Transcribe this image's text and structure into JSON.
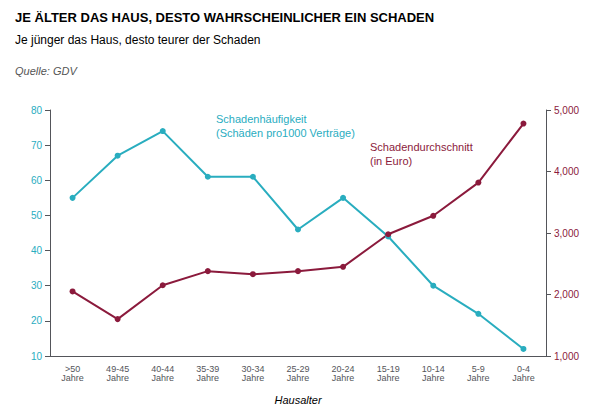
{
  "chart_data": {
    "type": "line",
    "title": "JE ÄLTER DAS HAUS, DESTO WAHRSCHEINLICHER EIN SCHADEN",
    "subtitle": "Je jünger das Haus, desto teurer der Schaden",
    "source": "Quelle: GDV",
    "xlabel": "Hausalter",
    "categories": [
      ">50\nJahre",
      "49-45\nJahre",
      "40-44\nJahre",
      "35-39\nJahre",
      "30-34\nJahre",
      "25-29\nJahre",
      "20-24\nJahre",
      "15-19\nJahre",
      "10-14\nJahre",
      "5-9\nJahre",
      "0-4\nJahre"
    ],
    "series": [
      {
        "color": "#29ADBF",
        "values": [
          55,
          67,
          74,
          61,
          61,
          46,
          55,
          44,
          30,
          22,
          12
        ]
      },
      {
        "color": "#8B1A3C",
        "axis": "y2",
        "values": [
          2050,
          1600,
          2150,
          2380,
          2330,
          2380,
          2450,
          2980,
          3280,
          3820,
          4780
        ]
      }
    ],
    "annotations": [
      "Schadenhäufigkeit\n(Schäden pro1000 Verträge)",
      "Schadendurchschnitt\n(in Euro)"
    ],
    "ylim": [
      10,
      80
    ],
    "yticks": [
      10,
      20,
      30,
      40,
      50,
      60,
      70,
      80
    ],
    "y2lim": [
      1000,
      5000
    ],
    "y2ticks": [
      1000,
      2000,
      3000,
      4000,
      5000
    ],
    "marker": "circle",
    "grid": false
  }
}
